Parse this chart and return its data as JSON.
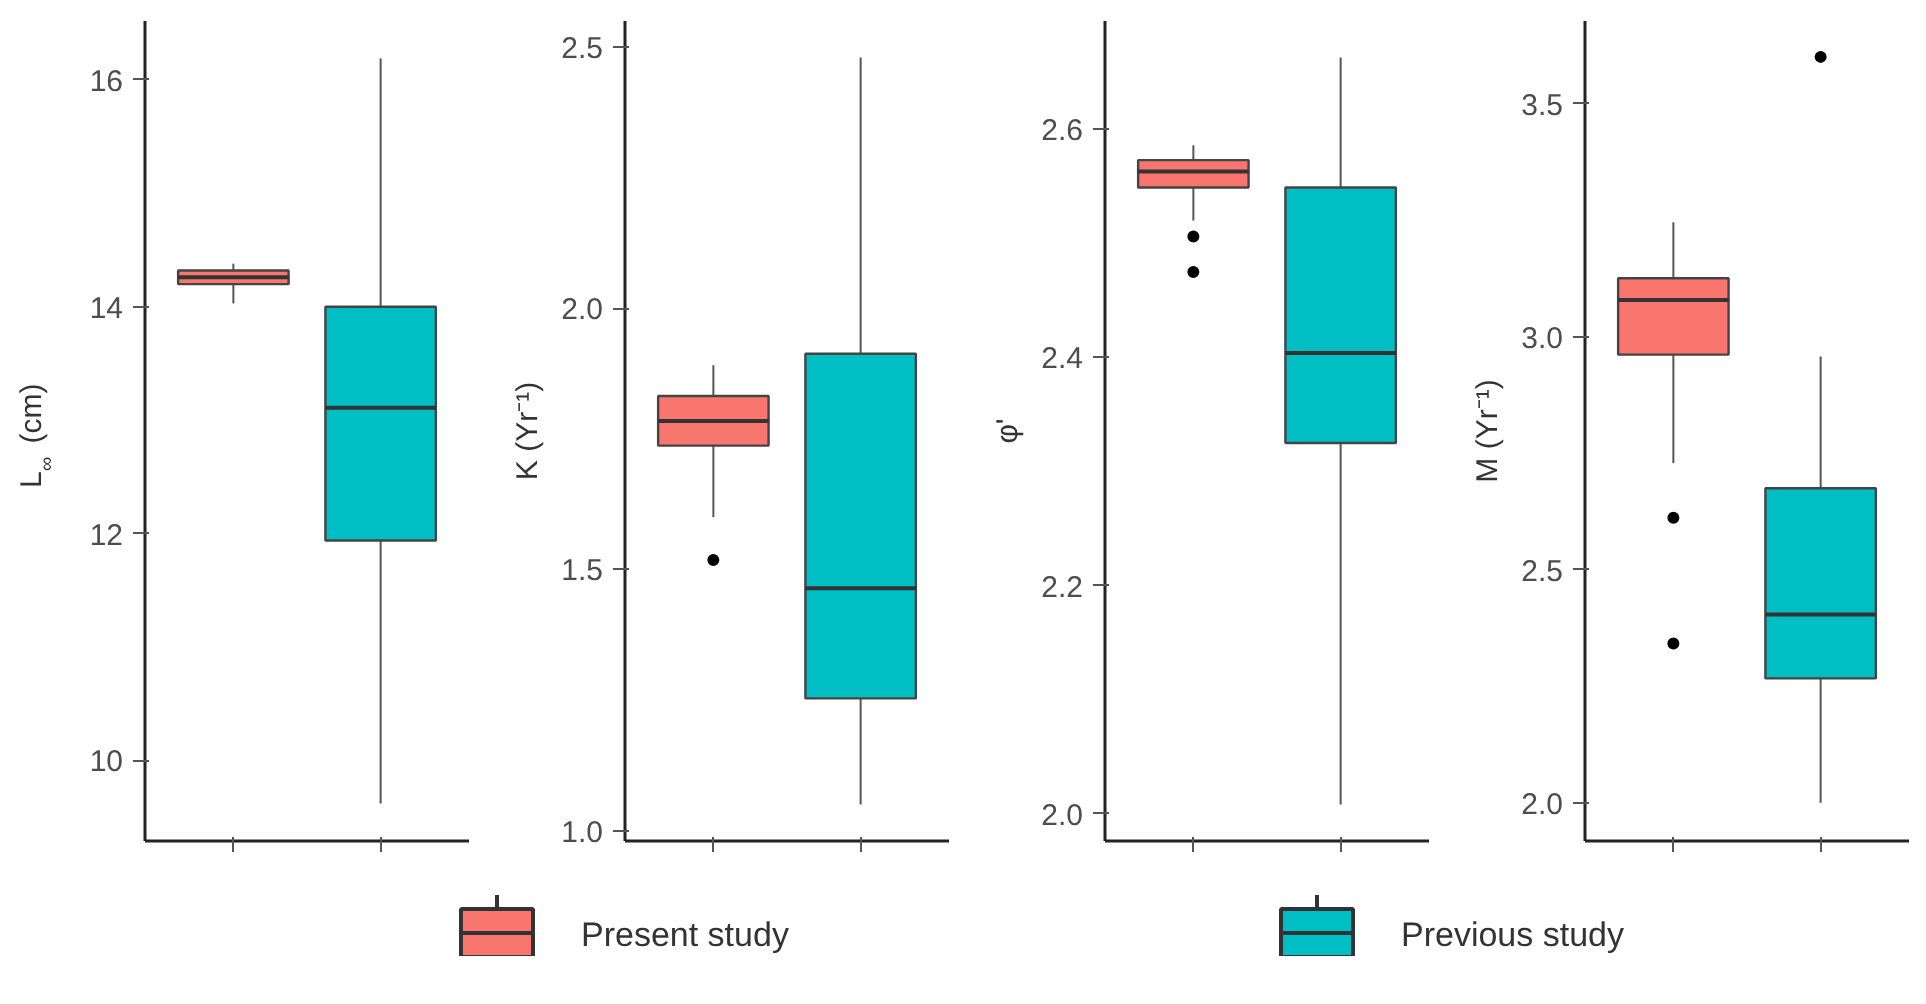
{
  "chart_data": [
    {
      "type": "box",
      "ylabel": "L$_{∞}$ (cm)",
      "categories": [
        null,
        null
      ],
      "ylim": [
        9.29,
        16.52
      ],
      "yticks": [
        10,
        12,
        14,
        16
      ],
      "grid": false,
      "tick_labels": "y",
      "legend": "bottom",
      "series": [
        {
          "name": "Present study",
          "color": "#f8766d",
          "boxes": [
            {
              "low": 14.03,
              "q1": 14.2,
              "median": 14.26,
              "q3": 14.32,
              "high": 14.38
            },
            null
          ]
        },
        {
          "name": "Previous study",
          "color": "#00bfc4",
          "boxes": [
            null,
            {
              "low": 9.62,
              "q1": 11.94,
              "median": 13.11,
              "q3": 14.0,
              "high": 16.19
            }
          ]
        }
      ]
    },
    {
      "type": "box",
      "ylabel": "K (Yr⁻¹)",
      "categories": [
        null,
        null
      ],
      "ylim": [
        0.98,
        2.55
      ],
      "yticks": [
        {
          "value": 1,
          "label": "1.0"
        },
        1.5,
        {
          "value": 2,
          "label": "2.0"
        },
        2.5
      ],
      "grid": false,
      "tick_labels": "y",
      "series": [
        {
          "color": "#f8766d",
          "boxes": [
            {
              "low": 1.6,
              "q1": 1.737,
              "median": 1.784,
              "q3": 1.832,
              "high": 1.891,
              "outliers": [
                1.518
              ]
            },
            null
          ]
        },
        {
          "color": "#00bfc4",
          "boxes": [
            null,
            {
              "low": 1.05,
              "q1": 1.253,
              "median": 1.464,
              "q3": 1.913,
              "high": 2.48
            }
          ]
        }
      ]
    },
    {
      "type": "box",
      "ylabel": "φ'",
      "categories": [
        null,
        null
      ],
      "ylim": [
        1.976,
        2.695
      ],
      "yticks": [
        {
          "value": 2,
          "label": "2.0"
        },
        2.2,
        2.4,
        2.6
      ],
      "grid": false,
      "tick_labels": "y",
      "series": [
        {
          "color": "#f8766d",
          "boxes": [
            {
              "low": 2.52,
              "q1": 2.549,
              "median": 2.563,
              "q3": 2.573,
              "high": 2.586,
              "outliers": [
                2.506,
                2.475
              ]
            },
            null
          ]
        },
        {
          "color": "#00bfc4",
          "boxes": [
            null,
            {
              "low": 2.008,
              "q1": 2.325,
              "median": 2.404,
              "q3": 2.549,
              "high": 2.663
            }
          ]
        }
      ]
    },
    {
      "type": "box",
      "ylabel": "M (Yr⁻¹)",
      "categories": [
        null,
        null
      ],
      "ylim": [
        1.918,
        3.678
      ],
      "yticks": [
        {
          "value": 2,
          "label": "2.0"
        },
        2.5,
        {
          "value": 3,
          "label": "3.0"
        },
        3.5
      ],
      "grid": false,
      "tick_labels": "y",
      "series": [
        {
          "color": "#f8766d",
          "boxes": [
            {
              "low": 2.729,
              "q1": 2.962,
              "median": 3.079,
              "q3": 3.126,
              "high": 3.246,
              "outliers": [
                2.612,
                2.342
              ]
            },
            null
          ]
        },
        {
          "color": "#00bfc4",
          "boxes": [
            null,
            {
              "low": 2.0,
              "q1": 2.267,
              "median": 2.404,
              "q3": 2.675,
              "high": 2.958,
              "outliers": [
                3.601
              ]
            }
          ]
        }
      ]
    }
  ]
}
